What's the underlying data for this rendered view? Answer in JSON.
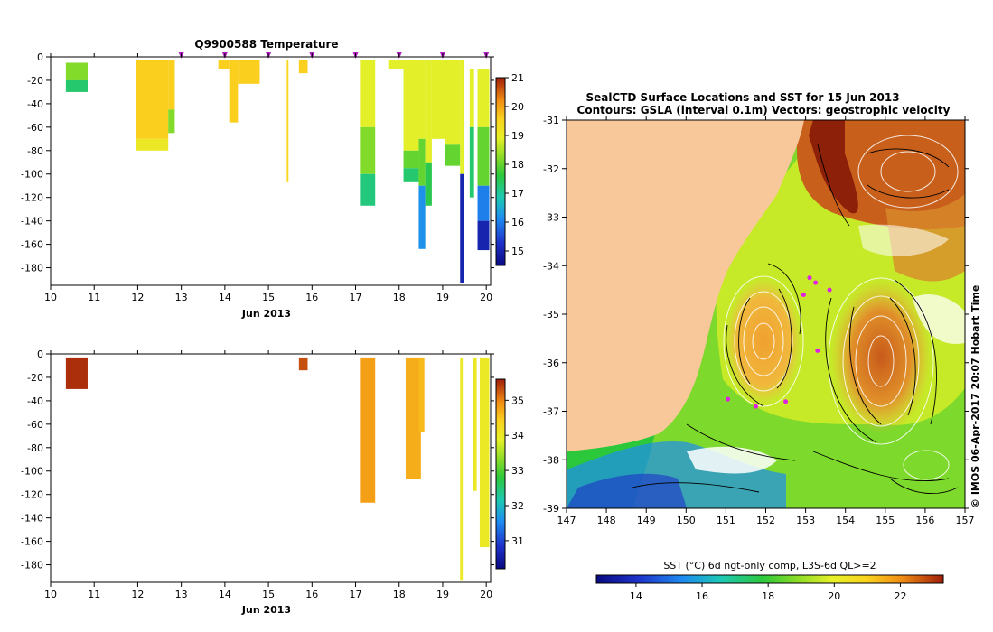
{
  "chart_data": [
    {
      "type": "heatmap",
      "title": "Q9900588  Temperature",
      "xlabel": "Jun 2013",
      "ylabel": "",
      "xlim": [
        10,
        20.1
      ],
      "ylim": [
        -195,
        0
      ],
      "x_ticks": [
        "10",
        "11",
        "12",
        "13",
        "14",
        "15",
        "16",
        "17",
        "18",
        "19",
        "20"
      ],
      "y_ticks": [
        "0",
        "-20",
        "-40",
        "-60",
        "-80",
        "-100",
        "-120",
        "-140",
        "-160",
        "-180"
      ],
      "colorbar": {
        "min": 14.5,
        "max": 21.0,
        "ticks": [
          "21",
          "20",
          "19",
          "18",
          "17",
          "16",
          "15"
        ]
      },
      "surface_markers": [
        13.0,
        14.0,
        15.0,
        16.0,
        17.0,
        18.0,
        19.0,
        20.0
      ],
      "profiles": [
        {
          "x0": 10.35,
          "x1": 10.85,
          "segments": [
            {
              "top": -5,
              "bottom": -20,
              "value": 18.2
            },
            {
              "top": -20,
              "bottom": -30,
              "value": 17.3
            }
          ]
        },
        {
          "x0": 11.95,
          "x1": 12.7,
          "segments": [
            {
              "top": -3,
              "bottom": -70,
              "value": 19.6
            },
            {
              "top": -70,
              "bottom": -80,
              "value": 19.1
            }
          ]
        },
        {
          "x0": 12.7,
          "x1": 12.85,
          "segments": [
            {
              "top": -3,
              "bottom": -45,
              "value": 19.6
            },
            {
              "top": -45,
              "bottom": -65,
              "value": 18.2
            }
          ]
        },
        {
          "x0": 13.85,
          "x1": 14.1,
          "segments": [
            {
              "top": -3,
              "bottom": -10,
              "value": 19.6
            }
          ]
        },
        {
          "x0": 14.1,
          "x1": 14.3,
          "segments": [
            {
              "top": -3,
              "bottom": -56,
              "value": 19.6
            }
          ]
        },
        {
          "x0": 14.3,
          "x1": 14.8,
          "segments": [
            {
              "top": -3,
              "bottom": -23,
              "value": 19.6
            }
          ]
        },
        {
          "x0": 15.42,
          "x1": 15.46,
          "segments": [
            {
              "top": -3,
              "bottom": -107,
              "value": 19.5
            }
          ]
        },
        {
          "x0": 15.7,
          "x1": 15.9,
          "segments": [
            {
              "top": -3,
              "bottom": -14,
              "value": 19.6
            }
          ]
        },
        {
          "x0": 17.1,
          "x1": 17.45,
          "segments": [
            {
              "top": -3,
              "bottom": -60,
              "value": 18.9
            },
            {
              "top": -60,
              "bottom": -100,
              "value": 18.2
            },
            {
              "top": -100,
              "bottom": -127,
              "value": 17.2
            }
          ]
        },
        {
          "x0": 17.75,
          "x1": 18.1,
          "segments": [
            {
              "top": -3,
              "bottom": -10,
              "value": 18.9
            }
          ]
        },
        {
          "x0": 18.1,
          "x1": 18.45,
          "segments": [
            {
              "top": -3,
              "bottom": -80,
              "value": 18.9
            },
            {
              "top": -80,
              "bottom": -95,
              "value": 18.0
            },
            {
              "top": -95,
              "bottom": -107,
              "value": 17.3
            }
          ]
        },
        {
          "x0": 18.45,
          "x1": 18.6,
          "segments": [
            {
              "top": -3,
              "bottom": -70,
              "value": 18.9
            },
            {
              "top": -70,
              "bottom": -110,
              "value": 18.0
            },
            {
              "top": -110,
              "bottom": -164,
              "value": 16.2
            }
          ]
        },
        {
          "x0": 18.6,
          "x1": 18.75,
          "segments": [
            {
              "top": -3,
              "bottom": -90,
              "value": 18.9
            },
            {
              "top": -90,
              "bottom": -127,
              "value": 17.5
            }
          ]
        },
        {
          "x0": 18.75,
          "x1": 19.05,
          "segments": [
            {
              "top": -3,
              "bottom": -70,
              "value": 18.9
            }
          ]
        },
        {
          "x0": 19.05,
          "x1": 19.4,
          "segments": [
            {
              "top": -3,
              "bottom": -75,
              "value": 18.9
            },
            {
              "top": -75,
              "bottom": -93,
              "value": 18.0
            }
          ]
        },
        {
          "x0": 19.4,
          "x1": 19.48,
          "segments": [
            {
              "top": -3,
              "bottom": -100,
              "value": 18.9
            },
            {
              "top": -100,
              "bottom": -193,
              "value": 15.0
            }
          ]
        },
        {
          "x0": 19.62,
          "x1": 19.72,
          "segments": [
            {
              "top": -10,
              "bottom": -60,
              "value": 18.9
            },
            {
              "top": -60,
              "bottom": -120,
              "value": 17.3
            }
          ]
        },
        {
          "x0": 19.8,
          "x1": 20.07,
          "segments": [
            {
              "top": -10,
              "bottom": -60,
              "value": 18.9
            },
            {
              "top": -60,
              "bottom": -110,
              "value": 18.0
            },
            {
              "top": -110,
              "bottom": -140,
              "value": 16.0
            },
            {
              "top": -140,
              "bottom": -165,
              "value": 15.0
            }
          ]
        }
      ]
    },
    {
      "type": "heatmap",
      "title": "",
      "xlabel": "Jun 2013",
      "ylabel": "",
      "xlim": [
        10,
        20.1
      ],
      "ylim": [
        -195,
        0
      ],
      "x_ticks": [
        "10",
        "11",
        "12",
        "13",
        "14",
        "15",
        "16",
        "17",
        "18",
        "19",
        "20"
      ],
      "y_ticks": [
        "0",
        "-20",
        "-40",
        "-60",
        "-80",
        "-100",
        "-120",
        "-140",
        "-160",
        "-180"
      ],
      "colorbar": {
        "min": 30.2,
        "max": 35.6,
        "ticks": [
          "35",
          "34",
          "33",
          "32",
          "31"
        ]
      },
      "profiles": [
        {
          "x0": 10.35,
          "x1": 10.85,
          "segments": [
            {
              "top": -3,
              "bottom": -30,
              "value": 35.5
            }
          ]
        },
        {
          "x0": 15.7,
          "x1": 15.9,
          "segments": [
            {
              "top": -3,
              "bottom": -14,
              "value": 35.3
            }
          ]
        },
        {
          "x0": 17.1,
          "x1": 17.45,
          "segments": [
            {
              "top": -3,
              "bottom": -127,
              "value": 34.8
            }
          ]
        },
        {
          "x0": 18.15,
          "x1": 18.5,
          "segments": [
            {
              "top": -3,
              "bottom": -107,
              "value": 34.7
            }
          ]
        },
        {
          "x0": 18.45,
          "x1": 18.58,
          "segments": [
            {
              "top": -3,
              "bottom": -67,
              "value": 34.6
            }
          ]
        },
        {
          "x0": 19.4,
          "x1": 19.46,
          "segments": [
            {
              "top": -3,
              "bottom": -193,
              "value": 34.0
            }
          ]
        },
        {
          "x0": 19.7,
          "x1": 19.78,
          "segments": [
            {
              "top": -3,
              "bottom": -117,
              "value": 34.0
            }
          ]
        },
        {
          "x0": 19.85,
          "x1": 20.07,
          "segments": [
            {
              "top": -3,
              "bottom": -165,
              "value": 34.0
            }
          ]
        }
      ]
    },
    {
      "type": "map",
      "title_line1": "SealCTD Surface Locations and SST for 15 Jun 2013",
      "title_line2": "Contours: GSLA (interval 0.1m) Vectors: geostrophic velocity",
      "side_label": "© IMOS 06-Apr-2017 20:07 Hobart Time",
      "xlim": [
        147,
        157
      ],
      "ylim": [
        -39,
        -31
      ],
      "x_ticks": [
        "147",
        "148",
        "149",
        "150",
        "151",
        "152",
        "153",
        "154",
        "155",
        "156",
        "157"
      ],
      "y_ticks": [
        "-31",
        "-32",
        "-33",
        "-34",
        "-35",
        "-36",
        "-37",
        "-38",
        "-39"
      ],
      "colorbar": {
        "label": "SST (°C) 6d ngt-only comp, L3S-6d QL>=2",
        "min": 12.8,
        "max": 23.3,
        "ticks": [
          "14",
          "16",
          "18",
          "20",
          "22"
        ]
      },
      "land_color": "#f9c89a",
      "eddies": [
        {
          "lon": 151.95,
          "lat": -35.55,
          "label": "warm core"
        },
        {
          "lon": 155.1,
          "lat": -35.85,
          "label": "warm core"
        },
        {
          "lon": 155.4,
          "lat": -32.4,
          "label": "warm core"
        }
      ],
      "seal_positions": [
        {
          "lon": 153.25,
          "lat": -34.35
        },
        {
          "lon": 153.1,
          "lat": -34.25
        },
        {
          "lon": 152.95,
          "lat": -34.6
        },
        {
          "lon": 153.3,
          "lat": -35.75
        },
        {
          "lon": 151.05,
          "lat": -36.75
        },
        {
          "lon": 151.75,
          "lat": -36.9
        },
        {
          "lon": 152.5,
          "lat": -36.8
        },
        {
          "lon": 153.6,
          "lat": -34.5
        }
      ]
    }
  ]
}
